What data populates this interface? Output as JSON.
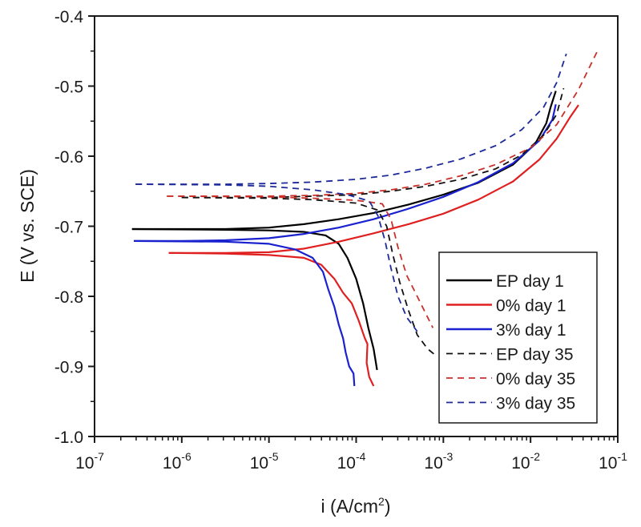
{
  "chart_data": {
    "type": "line",
    "title": "",
    "xlabel": "i (A/cm",
    "xlabel_sup": "2",
    "xlabel_suffix": ")",
    "ylabel": "E (V vs. SCE)",
    "xscale": "log",
    "xlim_log10": [
      -7,
      -1
    ],
    "ylim": [
      -1.0,
      -0.4
    ],
    "grid": false,
    "legend_position": "bottom-right",
    "x_ticks": [
      {
        "base": "10",
        "exp": "-7"
      },
      {
        "base": "10",
        "exp": "-6"
      },
      {
        "base": "10",
        "exp": "-5"
      },
      {
        "base": "10",
        "exp": "-4"
      },
      {
        "base": "10",
        "exp": "-3"
      },
      {
        "base": "10",
        "exp": "-2"
      },
      {
        "base": "10",
        "exp": "-1"
      }
    ],
    "y_ticks": [
      "-0.4",
      "-0.5",
      "-0.6",
      "-0.7",
      "-0.8",
      "-0.9",
      "-1.0"
    ],
    "y_tick_values": [
      -0.4,
      -0.5,
      -0.6,
      -0.7,
      -0.8,
      -0.9,
      -1.0
    ],
    "series": [
      {
        "name": "EP day 1",
        "color": "#000000",
        "style": "solid",
        "anodic": [
          [
            -6.57,
            -0.704
          ],
          [
            -6.0,
            -0.704
          ],
          [
            -5.5,
            -0.704
          ],
          [
            -5.0,
            -0.702
          ],
          [
            -4.6,
            -0.697
          ],
          [
            -4.2,
            -0.69
          ],
          [
            -3.8,
            -0.681
          ],
          [
            -3.4,
            -0.669
          ],
          [
            -3.0,
            -0.655
          ],
          [
            -2.6,
            -0.638
          ],
          [
            -2.2,
            -0.612
          ],
          [
            -1.95,
            -0.583
          ],
          [
            -1.82,
            -0.553
          ],
          [
            -1.77,
            -0.53
          ],
          [
            -1.71,
            -0.507
          ]
        ],
        "cathodic": [
          [
            -6.57,
            -0.704
          ],
          [
            -5.5,
            -0.705
          ],
          [
            -5.0,
            -0.706
          ],
          [
            -4.6,
            -0.708
          ],
          [
            -4.35,
            -0.713
          ],
          [
            -4.2,
            -0.725
          ],
          [
            -4.1,
            -0.745
          ],
          [
            -4.0,
            -0.775
          ],
          [
            -3.92,
            -0.81
          ],
          [
            -3.86,
            -0.845
          ],
          [
            -3.8,
            -0.875
          ],
          [
            -3.76,
            -0.905
          ]
        ]
      },
      {
        "name": "0% day 1",
        "color": "#e02020",
        "style": "solid",
        "anodic": [
          [
            -6.15,
            -0.738
          ],
          [
            -5.5,
            -0.738
          ],
          [
            -5.0,
            -0.737
          ],
          [
            -4.6,
            -0.732
          ],
          [
            -4.2,
            -0.722
          ],
          [
            -3.8,
            -0.71
          ],
          [
            -3.4,
            -0.697
          ],
          [
            -3.0,
            -0.682
          ],
          [
            -2.6,
            -0.662
          ],
          [
            -2.2,
            -0.636
          ],
          [
            -1.9,
            -0.605
          ],
          [
            -1.7,
            -0.575
          ],
          [
            -1.55,
            -0.545
          ],
          [
            -1.45,
            -0.527
          ]
        ],
        "cathodic": [
          [
            -6.15,
            -0.738
          ],
          [
            -5.5,
            -0.739
          ],
          [
            -5.0,
            -0.741
          ],
          [
            -4.6,
            -0.745
          ],
          [
            -4.4,
            -0.755
          ],
          [
            -4.25,
            -0.775
          ],
          [
            -4.15,
            -0.795
          ],
          [
            -4.05,
            -0.81
          ],
          [
            -3.97,
            -0.835
          ],
          [
            -3.9,
            -0.86
          ],
          [
            -3.87,
            -0.868
          ],
          [
            -3.88,
            -0.895
          ],
          [
            -3.85,
            -0.915
          ],
          [
            -3.8,
            -0.928
          ]
        ]
      },
      {
        "name": "3% day 1",
        "color": "#1a22d0",
        "style": "solid",
        "anodic": [
          [
            -6.55,
            -0.721
          ],
          [
            -6.0,
            -0.721
          ],
          [
            -5.5,
            -0.72
          ],
          [
            -5.0,
            -0.717
          ],
          [
            -4.6,
            -0.711
          ],
          [
            -4.2,
            -0.702
          ],
          [
            -3.8,
            -0.69
          ],
          [
            -3.4,
            -0.675
          ],
          [
            -3.0,
            -0.658
          ],
          [
            -2.6,
            -0.637
          ],
          [
            -2.2,
            -0.61
          ],
          [
            -1.9,
            -0.578
          ],
          [
            -1.75,
            -0.548
          ],
          [
            -1.71,
            -0.526
          ]
        ],
        "cathodic": [
          [
            -6.55,
            -0.721
          ],
          [
            -5.5,
            -0.722
          ],
          [
            -5.0,
            -0.725
          ],
          [
            -4.7,
            -0.733
          ],
          [
            -4.5,
            -0.745
          ],
          [
            -4.38,
            -0.765
          ],
          [
            -4.32,
            -0.79
          ],
          [
            -4.25,
            -0.815
          ],
          [
            -4.2,
            -0.84
          ],
          [
            -4.15,
            -0.86
          ],
          [
            -4.12,
            -0.88
          ],
          [
            -4.08,
            -0.9
          ],
          [
            -4.03,
            -0.91
          ],
          [
            -4.02,
            -0.928
          ]
        ]
      },
      {
        "name": "EP day 35",
        "color": "#111111",
        "style": "dashed",
        "anodic": [
          [
            -6.0,
            -0.659
          ],
          [
            -5.5,
            -0.659
          ],
          [
            -5.0,
            -0.659
          ],
          [
            -4.5,
            -0.657
          ],
          [
            -4.0,
            -0.655
          ],
          [
            -3.6,
            -0.65
          ],
          [
            -3.2,
            -0.643
          ],
          [
            -2.8,
            -0.633
          ],
          [
            -2.4,
            -0.618
          ],
          [
            -2.1,
            -0.598
          ],
          [
            -1.85,
            -0.57
          ],
          [
            -1.7,
            -0.54
          ],
          [
            -1.62,
            -0.503
          ]
        ],
        "cathodic": [
          [
            -6.0,
            -0.659
          ],
          [
            -5.0,
            -0.66
          ],
          [
            -4.5,
            -0.662
          ],
          [
            -4.0,
            -0.667
          ],
          [
            -3.75,
            -0.677
          ],
          [
            -3.65,
            -0.7
          ],
          [
            -3.58,
            -0.74
          ],
          [
            -3.5,
            -0.78
          ],
          [
            -3.4,
            -0.82
          ],
          [
            -3.3,
            -0.855
          ],
          [
            -3.18,
            -0.875
          ],
          [
            -3.08,
            -0.885
          ]
        ]
      },
      {
        "name": "0% day 35",
        "color": "#c8302a",
        "style": "dashed",
        "anodic": [
          [
            -6.17,
            -0.657
          ],
          [
            -5.5,
            -0.657
          ],
          [
            -5.0,
            -0.657
          ],
          [
            -4.5,
            -0.656
          ],
          [
            -4.0,
            -0.653
          ],
          [
            -3.6,
            -0.648
          ],
          [
            -3.2,
            -0.64
          ],
          [
            -2.8,
            -0.628
          ],
          [
            -2.4,
            -0.612
          ],
          [
            -2.0,
            -0.588
          ],
          [
            -1.7,
            -0.555
          ],
          [
            -1.45,
            -0.505
          ],
          [
            -1.23,
            -0.449
          ]
        ],
        "cathodic": [
          [
            -6.17,
            -0.657
          ],
          [
            -5.0,
            -0.658
          ],
          [
            -4.5,
            -0.66
          ],
          [
            -4.0,
            -0.663
          ],
          [
            -3.7,
            -0.668
          ],
          [
            -3.6,
            -0.69
          ],
          [
            -3.52,
            -0.73
          ],
          [
            -3.42,
            -0.77
          ],
          [
            -3.3,
            -0.8
          ],
          [
            -3.18,
            -0.83
          ],
          [
            -3.12,
            -0.845
          ]
        ]
      },
      {
        "name": "3% day 35",
        "color": "#1c2a9a",
        "style": "dashed",
        "anodic": [
          [
            -6.53,
            -0.64
          ],
          [
            -6.0,
            -0.64
          ],
          [
            -5.5,
            -0.64
          ],
          [
            -5.0,
            -0.639
          ],
          [
            -4.5,
            -0.637
          ],
          [
            -4.0,
            -0.633
          ],
          [
            -3.6,
            -0.627
          ],
          [
            -3.2,
            -0.617
          ],
          [
            -2.8,
            -0.604
          ],
          [
            -2.4,
            -0.585
          ],
          [
            -2.1,
            -0.562
          ],
          [
            -1.85,
            -0.53
          ],
          [
            -1.7,
            -0.495
          ],
          [
            -1.59,
            -0.454
          ]
        ],
        "cathodic": [
          [
            -6.53,
            -0.64
          ],
          [
            -5.5,
            -0.641
          ],
          [
            -5.0,
            -0.643
          ],
          [
            -4.5,
            -0.648
          ],
          [
            -4.1,
            -0.655
          ],
          [
            -3.85,
            -0.664
          ],
          [
            -3.75,
            -0.685
          ],
          [
            -3.67,
            -0.72
          ],
          [
            -3.6,
            -0.76
          ],
          [
            -3.52,
            -0.8
          ],
          [
            -3.42,
            -0.83
          ],
          [
            -3.3,
            -0.85
          ]
        ]
      }
    ]
  }
}
